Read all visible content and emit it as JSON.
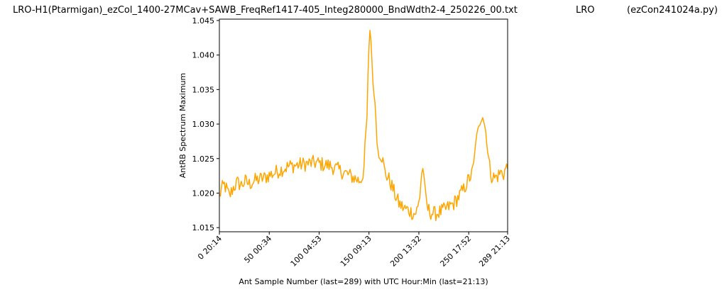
{
  "chart_data": {
    "type": "line",
    "title": "LRO-H1(Ptarmigan)_ezCol_1400-27MCav+SAWB_FreqRef1417-405_Integ280000_BndWdth2-4_250226_00.txt",
    "title_mid": "LRO",
    "title_right": "(ezCon241024a.py)",
    "xlabel": "Ant Sample Number (last=289) with UTC Hour:Min (last=21:13)",
    "ylabel": "AntRB Spectrum Maximum",
    "xlim": [
      0,
      289
    ],
    "ylim": [
      1.0144,
      1.0452
    ],
    "grid": false,
    "line_color": "#FFA500",
    "x_ticks": [
      {
        "value": 0,
        "label": "0  20:14"
      },
      {
        "value": 50,
        "label": "50  00:34"
      },
      {
        "value": 100,
        "label": "100  04:53"
      },
      {
        "value": 150,
        "label": "150  09:13"
      },
      {
        "value": 200,
        "label": "200  13:32"
      },
      {
        "value": 250,
        "label": "250  17:52"
      },
      {
        "value": 289,
        "label": "289  21:13"
      }
    ],
    "y_ticks": [
      {
        "value": 1.015,
        "label": "1.015"
      },
      {
        "value": 1.02,
        "label": "1.020"
      },
      {
        "value": 1.025,
        "label": "1.025"
      },
      {
        "value": 1.03,
        "label": "1.030"
      },
      {
        "value": 1.035,
        "label": "1.035"
      },
      {
        "value": 1.04,
        "label": "1.040"
      },
      {
        "value": 1.045,
        "label": "1.045"
      }
    ],
    "series": [
      {
        "name": "",
        "keypoints": [
          [
            0,
            1.0195
          ],
          [
            2,
            1.0205
          ],
          [
            5,
            1.0212
          ],
          [
            8,
            1.0203
          ],
          [
            10,
            1.0195
          ],
          [
            14,
            1.0208
          ],
          [
            18,
            1.0215
          ],
          [
            22,
            1.0212
          ],
          [
            26,
            1.0217
          ],
          [
            30,
            1.0213
          ],
          [
            35,
            1.0218
          ],
          [
            40,
            1.022
          ],
          [
            45,
            1.0222
          ],
          [
            50,
            1.0226
          ],
          [
            55,
            1.0229
          ],
          [
            60,
            1.0233
          ],
          [
            65,
            1.0236
          ],
          [
            70,
            1.0239
          ],
          [
            75,
            1.024
          ],
          [
            80,
            1.0241
          ],
          [
            85,
            1.0242
          ],
          [
            90,
            1.0243
          ],
          [
            95,
            1.0244
          ],
          [
            100,
            1.0243
          ],
          [
            105,
            1.0241
          ],
          [
            110,
            1.024
          ],
          [
            115,
            1.0237
          ],
          [
            120,
            1.0233
          ],
          [
            125,
            1.023
          ],
          [
            130,
            1.0226
          ],
          [
            135,
            1.0222
          ],
          [
            138,
            1.022
          ],
          [
            140,
            1.0218
          ],
          [
            143,
            1.0222
          ],
          [
            145,
            1.0238
          ],
          [
            147,
            1.029
          ],
          [
            148,
            1.031
          ],
          [
            149,
            1.037
          ],
          [
            150,
            1.041
          ],
          [
            151,
            1.0437
          ],
          [
            152,
            1.042
          ],
          [
            153,
            1.039
          ],
          [
            154,
            1.0362
          ],
          [
            155,
            1.034
          ],
          [
            156,
            1.0332
          ],
          [
            157,
            1.031
          ],
          [
            158,
            1.027
          ],
          [
            160,
            1.026
          ],
          [
            163,
            1.0253
          ],
          [
            166,
            1.023
          ],
          [
            170,
            1.022
          ],
          [
            173,
            1.021
          ],
          [
            176,
            1.0198
          ],
          [
            180,
            1.0185
          ],
          [
            185,
            1.0178
          ],
          [
            190,
            1.0175
          ],
          [
            193,
            1.0172
          ],
          [
            196,
            1.017
          ],
          [
            199,
            1.0178
          ],
          [
            201,
            1.0195
          ],
          [
            202,
            1.0215
          ],
          [
            203,
            1.023
          ],
          [
            204,
            1.0235
          ],
          [
            205,
            1.0228
          ],
          [
            206,
            1.021
          ],
          [
            207,
            1.019
          ],
          [
            209,
            1.0177
          ],
          [
            212,
            1.0172
          ],
          [
            216,
            1.017
          ],
          [
            220,
            1.0172
          ],
          [
            225,
            1.0175
          ],
          [
            230,
            1.018
          ],
          [
            235,
            1.0185
          ],
          [
            240,
            1.0195
          ],
          [
            245,
            1.0205
          ],
          [
            248,
            1.0215
          ],
          [
            250,
            1.022
          ],
          [
            253,
            1.0227
          ],
          [
            255,
            1.024
          ],
          [
            257,
            1.0275
          ],
          [
            259,
            1.029
          ],
          [
            261,
            1.03
          ],
          [
            263,
            1.0308
          ],
          [
            264,
            1.0311
          ],
          [
            265,
            1.0305
          ],
          [
            267,
            1.029
          ],
          [
            269,
            1.026
          ],
          [
            271,
            1.0238
          ],
          [
            273,
            1.0225
          ],
          [
            276,
            1.0222
          ],
          [
            279,
            1.0225
          ],
          [
            282,
            1.023
          ],
          [
            285,
            1.0228
          ],
          [
            287,
            1.0235
          ],
          [
            289,
            1.0237
          ]
        ]
      }
    ]
  }
}
